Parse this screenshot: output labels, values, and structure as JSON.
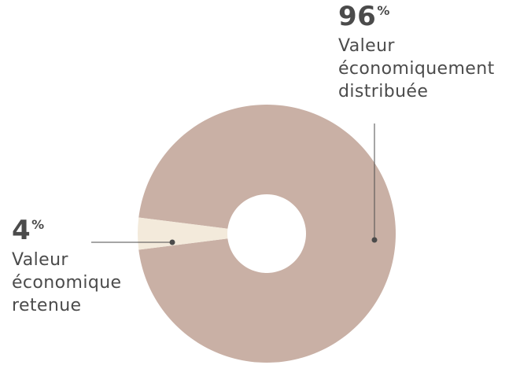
{
  "chart_data": {
    "type": "pie",
    "variant": "donut",
    "slices": [
      {
        "label_lines": [
          "Valeur",
          "économiquement",
          "distribuée"
        ],
        "value": 96,
        "value_text": "96",
        "unit": "%",
        "color": "#c9b0a5"
      },
      {
        "label_lines": [
          "Valeur",
          "économique",
          "retenue"
        ],
        "value": 4,
        "value_text": "4",
        "unit": "%",
        "color": "#f3eadb"
      }
    ],
    "leader_color": "#4b4b4b"
  }
}
